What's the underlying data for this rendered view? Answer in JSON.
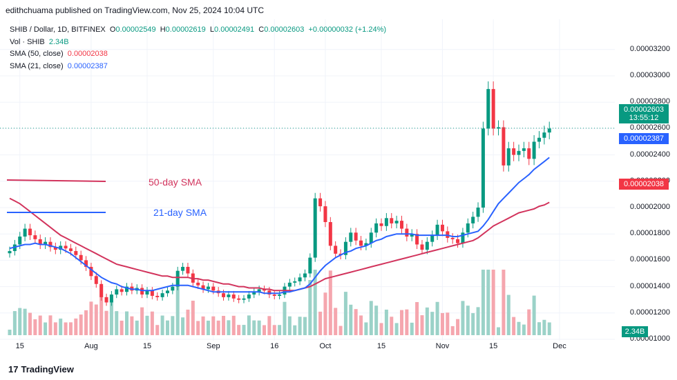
{
  "header": {
    "publisher_line": "edithchuama published on TradingView.com, Nov 25, 2024 10:04 UTC"
  },
  "legend": {
    "symbol": "SHIB / Dollar, 1D, BITFINEX",
    "o_label": "O",
    "o_value": "0.00002549",
    "h_label": "H",
    "h_value": "0.00002619",
    "l_label": "L",
    "l_value": "0.00002491",
    "c_label": "C",
    "c_value": "0.00002603",
    "change": "+0.00000032 (+1.24%)",
    "vol_label": "Vol · SHIB",
    "vol_value": "2.34B",
    "sma50_label": "SMA (50, close)",
    "sma50_value": "0.00002038",
    "sma21_label": "SMA (21, close)",
    "sma21_value": "0.00002387"
  },
  "annotations": {
    "sma50": "50-day SMA",
    "sma21": "21-day SMA"
  },
  "price_tags": {
    "last_price": "0.00002603",
    "countdown": "13:55:12",
    "sma21": "0.00002387",
    "sma50": "0.00002038",
    "volume": "2.34B"
  },
  "footer": {
    "brand": "TradingView",
    "logo": "17"
  },
  "colors": {
    "up": "#089981",
    "down": "#f23645",
    "sma21": "#2962ff",
    "sma50": "#d2335c",
    "vol_up": "#9bd2c8",
    "vol_down": "#f5a6ae",
    "grid": "#f0f3fa"
  },
  "chart_data": {
    "type": "candlestick",
    "title": "SHIB / Dollar, 1D, BITFINEX",
    "y_ticks": [
      "0.00003200",
      "0.00003000",
      "0.00002800",
      "0.00002600",
      "0.00002400",
      "0.00002200",
      "0.00002000",
      "0.00001800",
      "0.00001600",
      "0.00001400",
      "0.00001200",
      "0.00001000"
    ],
    "ylim": [
      9.4e-06,
      3.31e-05
    ],
    "x_ticks": [
      "15",
      "Aug",
      "15",
      "Sep",
      "16",
      "Oct",
      "15",
      "Nov",
      "15",
      "Dec"
    ],
    "x_tick_index": [
      2,
      16,
      27,
      40,
      52,
      62,
      73,
      85,
      95,
      108
    ],
    "closes": [
      1.67e-05,
      1.72e-05,
      1.78e-05,
      1.84e-05,
      1.79e-05,
      1.76e-05,
      1.72e-05,
      1.74e-05,
      1.7e-05,
      1.68e-05,
      1.71e-05,
      1.69e-05,
      1.67e-05,
      1.64e-05,
      1.6e-05,
      1.55e-05,
      1.48e-05,
      1.42e-05,
      1.32e-05,
      1.28e-05,
      1.34e-05,
      1.38e-05,
      1.36e-05,
      1.4e-05,
      1.37e-05,
      1.39e-05,
      1.34e-05,
      1.37e-05,
      1.33e-05,
      1.32e-05,
      1.35e-05,
      1.37e-05,
      1.4e-05,
      1.52e-05,
      1.55e-05,
      1.5e-05,
      1.43e-05,
      1.41e-05,
      1.38e-05,
      1.4e-05,
      1.37e-05,
      1.35e-05,
      1.32e-05,
      1.34e-05,
      1.31e-05,
      1.3e-05,
      1.31e-05,
      1.34e-05,
      1.36e-05,
      1.38e-05,
      1.37e-05,
      1.34e-05,
      1.33e-05,
      1.34e-05,
      1.4e-05,
      1.43e-05,
      1.44e-05,
      1.47e-05,
      1.5e-05,
      1.62e-05,
      2.07e-05,
      2.01e-05,
      1.89e-05,
      1.71e-05,
      1.65e-05,
      1.64e-05,
      1.74e-05,
      1.81e-05,
      1.75e-05,
      1.71e-05,
      1.73e-05,
      1.81e-05,
      1.88e-05,
      1.86e-05,
      1.92e-05,
      1.88e-05,
      1.9e-05,
      1.84e-05,
      1.78e-05,
      1.8e-05,
      1.72e-05,
      1.68e-05,
      1.74e-05,
      1.79e-05,
      1.87e-05,
      1.82e-05,
      1.77e-05,
      1.76e-05,
      1.73e-05,
      1.81e-05,
      1.88e-05,
      1.93e-05,
      2e-05,
      2.6e-05,
      2.9e-05,
      2.6e-05,
      2.61e-05,
      2.32e-05,
      2.45e-05,
      2.4e-05,
      2.43e-05,
      2.45e-05,
      2.37e-05,
      2.5e-05,
      2.53e-05,
      2.57e-05,
      2.6e-05
    ],
    "sma21": [
      1.69e-05,
      1.7e-05,
      1.71e-05,
      1.72e-05,
      1.72e-05,
      1.73e-05,
      1.72e-05,
      1.72e-05,
      1.71e-05,
      1.7e-05,
      1.69e-05,
      1.67e-05,
      1.65e-05,
      1.62e-05,
      1.59e-05,
      1.56e-05,
      1.53e-05,
      1.5e-05,
      1.47e-05,
      1.45e-05,
      1.43e-05,
      1.42e-05,
      1.4e-05,
      1.39e-05,
      1.38e-05,
      1.38e-05,
      1.37e-05,
      1.37e-05,
      1.37e-05,
      1.38e-05,
      1.39e-05,
      1.4e-05,
      1.41e-05,
      1.41e-05,
      1.41e-05,
      1.41e-05,
      1.4e-05,
      1.39e-05,
      1.38e-05,
      1.37e-05,
      1.36e-05,
      1.36e-05,
      1.36e-05,
      1.36e-05,
      1.36e-05,
      1.36e-05,
      1.36e-05,
      1.36e-05,
      1.36e-05,
      1.36e-05,
      1.35e-05,
      1.35e-05,
      1.35e-05,
      1.35e-05,
      1.36e-05,
      1.36e-05,
      1.37e-05,
      1.38e-05,
      1.39e-05,
      1.42e-05,
      1.47e-05,
      1.52e-05,
      1.56e-05,
      1.59e-05,
      1.62e-05,
      1.64e-05,
      1.66e-05,
      1.67e-05,
      1.69e-05,
      1.7e-05,
      1.71e-05,
      1.73e-05,
      1.75e-05,
      1.76e-05,
      1.78e-05,
      1.79e-05,
      1.8e-05,
      1.8e-05,
      1.8e-05,
      1.8e-05,
      1.79e-05,
      1.79e-05,
      1.79e-05,
      1.79e-05,
      1.79e-05,
      1.79e-05,
      1.79e-05,
      1.78e-05,
      1.78e-05,
      1.79e-05,
      1.8e-05,
      1.81e-05,
      1.82e-05,
      1.86e-05,
      1.91e-05,
      1.97e-05,
      2.03e-05,
      2.07e-05,
      2.11e-05,
      2.15e-05,
      2.19e-05,
      2.22e-05,
      2.25e-05,
      2.29e-05,
      2.32e-05,
      2.35e-05,
      2.38e-05
    ],
    "sma50": [
      2.07e-05,
      2.05e-05,
      2.03e-05,
      2e-05,
      1.97e-05,
      1.94e-05,
      1.91e-05,
      1.88e-05,
      1.85e-05,
      1.82e-05,
      1.79e-05,
      1.77e-05,
      1.75e-05,
      1.73e-05,
      1.71e-05,
      1.69e-05,
      1.67e-05,
      1.65e-05,
      1.63e-05,
      1.61e-05,
      1.59e-05,
      1.57e-05,
      1.56e-05,
      1.55e-05,
      1.54e-05,
      1.53e-05,
      1.52e-05,
      1.51e-05,
      1.5e-05,
      1.49e-05,
      1.48e-05,
      1.48e-05,
      1.47e-05,
      1.47e-05,
      1.47e-05,
      1.47e-05,
      1.46e-05,
      1.46e-05,
      1.45e-05,
      1.45e-05,
      1.44e-05,
      1.43e-05,
      1.42e-05,
      1.42e-05,
      1.41e-05,
      1.4e-05,
      1.4e-05,
      1.39e-05,
      1.39e-05,
      1.39e-05,
      1.38e-05,
      1.38e-05,
      1.37e-05,
      1.37e-05,
      1.37e-05,
      1.37e-05,
      1.37e-05,
      1.38e-05,
      1.39e-05,
      1.4e-05,
      1.42e-05,
      1.44e-05,
      1.46e-05,
      1.47e-05,
      1.48e-05,
      1.49e-05,
      1.5e-05,
      1.51e-05,
      1.52e-05,
      1.53e-05,
      1.54e-05,
      1.55e-05,
      1.56e-05,
      1.57e-05,
      1.58e-05,
      1.59e-05,
      1.6e-05,
      1.61e-05,
      1.62e-05,
      1.63e-05,
      1.64e-05,
      1.65e-05,
      1.66e-05,
      1.67e-05,
      1.68e-05,
      1.69e-05,
      1.7e-05,
      1.71e-05,
      1.72e-05,
      1.73e-05,
      1.74e-05,
      1.75e-05,
      1.77e-05,
      1.8e-05,
      1.83e-05,
      1.86e-05,
      1.88e-05,
      1.9e-05,
      1.92e-05,
      1.94e-05,
      1.96e-05,
      1.97e-05,
      1.98e-05,
      1.99e-05,
      2.01e-05,
      2.02e-05,
      2.04e-05
    ]
  }
}
